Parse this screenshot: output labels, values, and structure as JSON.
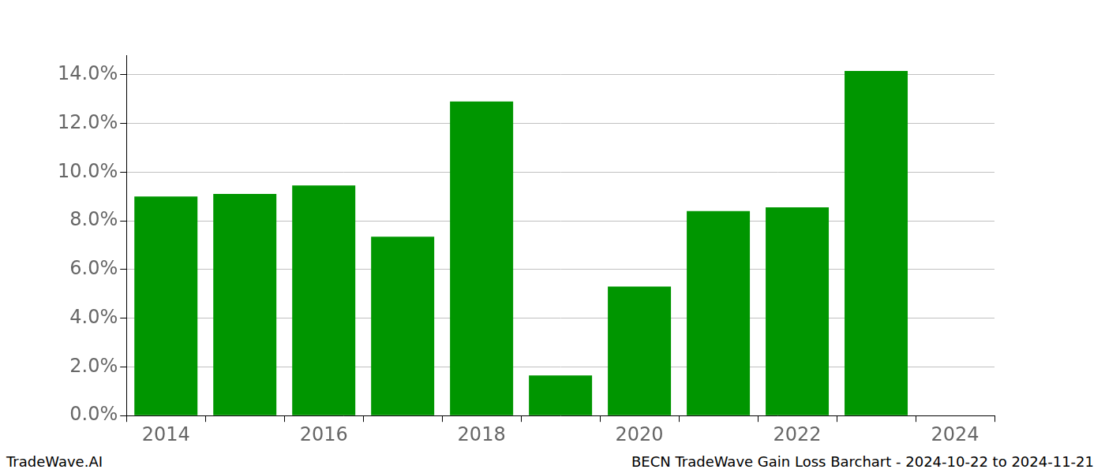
{
  "chart_data": {
    "type": "bar",
    "title": "BECN TradeWave Gain Loss Barchart - 2024-10-22 to 2024-11-21",
    "source": "TradeWave.AI",
    "categories": [
      "2014",
      null,
      "2016",
      null,
      "2018",
      null,
      "2020",
      null,
      "2022",
      null,
      "2024"
    ],
    "values": [
      9.0,
      9.1,
      9.45,
      7.35,
      12.9,
      1.65,
      5.3,
      8.4,
      8.55,
      14.15,
      null
    ],
    "color": "#009600",
    "ylim": [
      0,
      14.8
    ],
    "yticks": [
      {
        "value": 0,
        "label": "0.0%"
      },
      {
        "value": 2,
        "label": "2.0%"
      },
      {
        "value": 4,
        "label": "4.0%"
      },
      {
        "value": 6,
        "label": "6.0%"
      },
      {
        "value": 8,
        "label": "8.0%"
      },
      {
        "value": 10,
        "label": "10.0%"
      },
      {
        "value": 12,
        "label": "12.0%"
      },
      {
        "value": 14,
        "label": "14.0%"
      }
    ],
    "grid": true
  }
}
